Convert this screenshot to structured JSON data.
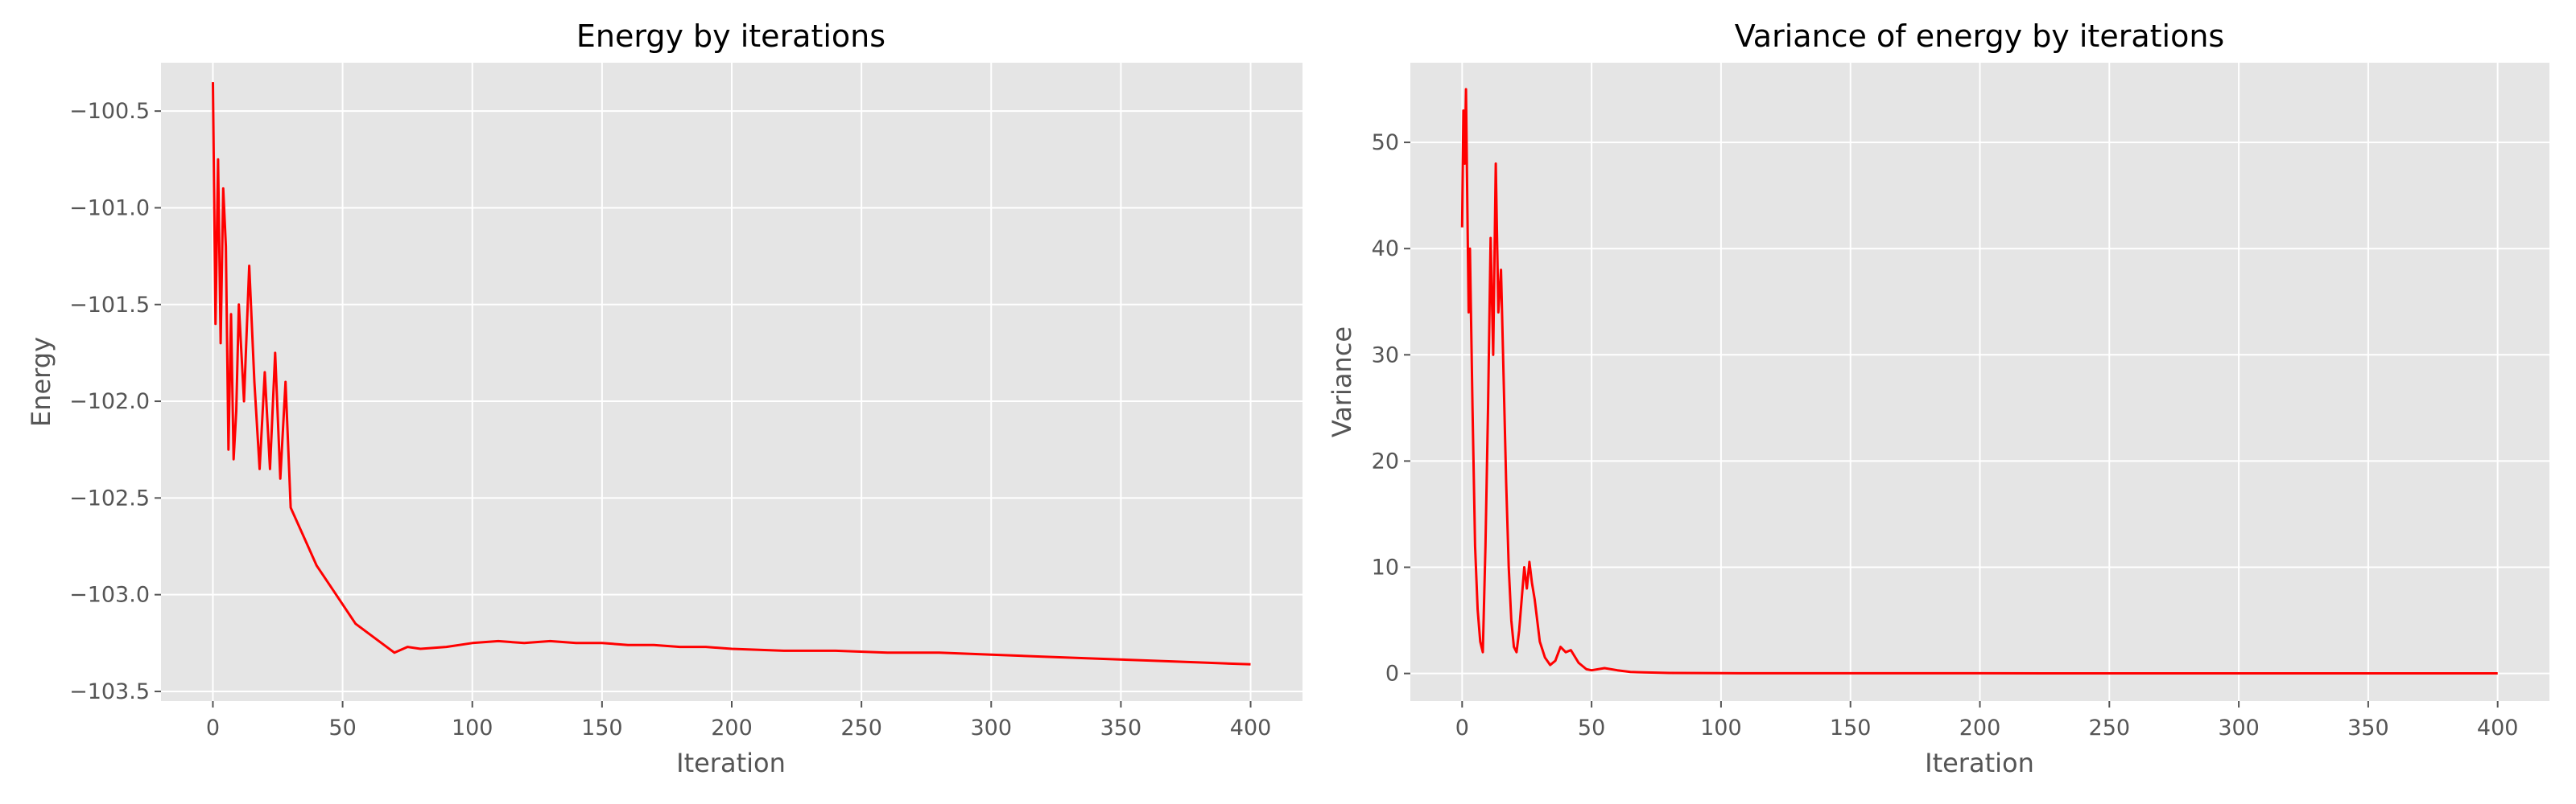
{
  "chart_data": [
    {
      "type": "line",
      "title": "Energy by iterations",
      "xlabel": "Iteration",
      "ylabel": "Energy",
      "xlim": [
        -20,
        420
      ],
      "ylim": [
        -103.55,
        -100.25
      ],
      "xticks": [
        0,
        50,
        100,
        150,
        200,
        250,
        300,
        350,
        400
      ],
      "xtick_labels": [
        "0",
        "50",
        "100",
        "150",
        "200",
        "250",
        "300",
        "350",
        "400"
      ],
      "yticks": [
        -103.5,
        -103.0,
        -102.5,
        -102.0,
        -101.5,
        -101.0,
        -100.5
      ],
      "ytick_labels": [
        "−103.5",
        "−103.0",
        "−102.5",
        "−102.0",
        "−101.5",
        "−101.0",
        "−100.5"
      ],
      "grid": true,
      "color": "#ff0000",
      "series": [
        {
          "x": [
            0,
            1,
            2,
            3,
            4,
            5,
            6,
            7,
            8,
            9,
            10,
            12,
            14,
            16,
            18,
            20,
            22,
            24,
            26,
            28,
            30,
            35,
            40,
            45,
            50,
            55,
            60,
            65,
            70,
            75,
            80,
            90,
            100,
            110,
            120,
            130,
            140,
            150,
            160,
            170,
            180,
            190,
            200,
            220,
            240,
            260,
            280,
            300,
            320,
            340,
            360,
            380,
            400
          ],
          "y": [
            -100.35,
            -101.6,
            -100.75,
            -101.7,
            -100.9,
            -101.2,
            -102.25,
            -101.55,
            -102.3,
            -102.05,
            -101.5,
            -102.0,
            -101.3,
            -101.9,
            -102.35,
            -101.85,
            -102.35,
            -101.75,
            -102.4,
            -101.9,
            -102.55,
            -102.7,
            -102.85,
            -102.95,
            -103.05,
            -103.15,
            -103.2,
            -103.25,
            -103.3,
            -103.27,
            -103.28,
            -103.27,
            -103.25,
            -103.24,
            -103.25,
            -103.24,
            -103.25,
            -103.25,
            -103.26,
            -103.26,
            -103.27,
            -103.27,
            -103.28,
            -103.29,
            -103.29,
            -103.3,
            -103.3,
            -103.31,
            -103.32,
            -103.33,
            -103.34,
            -103.35,
            -103.36
          ]
        }
      ]
    },
    {
      "type": "line",
      "title": "Variance of energy by iterations",
      "xlabel": "Iteration",
      "ylabel": "Variance",
      "xlim": [
        -20,
        420
      ],
      "ylim": [
        -2.6,
        57.5
      ],
      "xticks": [
        0,
        50,
        100,
        150,
        200,
        250,
        300,
        350,
        400
      ],
      "xtick_labels": [
        "0",
        "50",
        "100",
        "150",
        "200",
        "250",
        "300",
        "350",
        "400"
      ],
      "yticks": [
        0,
        10,
        20,
        30,
        40,
        50
      ],
      "ytick_labels": [
        "0",
        "10",
        "20",
        "30",
        "40",
        "50"
      ],
      "grid": true,
      "color": "#ff0000",
      "series": [
        {
          "x": [
            0,
            0.5,
            1,
            1.5,
            2,
            2.5,
            3,
            4,
            5,
            6,
            7,
            8,
            9,
            10,
            11,
            12,
            13,
            14,
            15,
            16,
            17,
            18,
            19,
            20,
            21,
            22,
            23,
            24,
            25,
            26,
            27,
            28,
            29,
            30,
            32,
            34,
            36,
            38,
            40,
            42,
            45,
            48,
            50,
            55,
            60,
            65,
            70,
            80,
            100,
            150,
            200,
            250,
            300,
            350,
            400
          ],
          "y": [
            42,
            53,
            48,
            55,
            44,
            34,
            40,
            25,
            12,
            6,
            3,
            2,
            12,
            25,
            41,
            30,
            48,
            34,
            38,
            28,
            18,
            10,
            5,
            2.5,
            2,
            4,
            7,
            10,
            8,
            10.5,
            8.5,
            7,
            5,
            3,
            1.5,
            0.8,
            1.2,
            2.5,
            2.0,
            2.2,
            1.0,
            0.4,
            0.3,
            0.5,
            0.3,
            0.15,
            0.1,
            0.05,
            0.03,
            0.02,
            0.02,
            0.01,
            0.01,
            0.01,
            0.01
          ]
        }
      ]
    }
  ]
}
